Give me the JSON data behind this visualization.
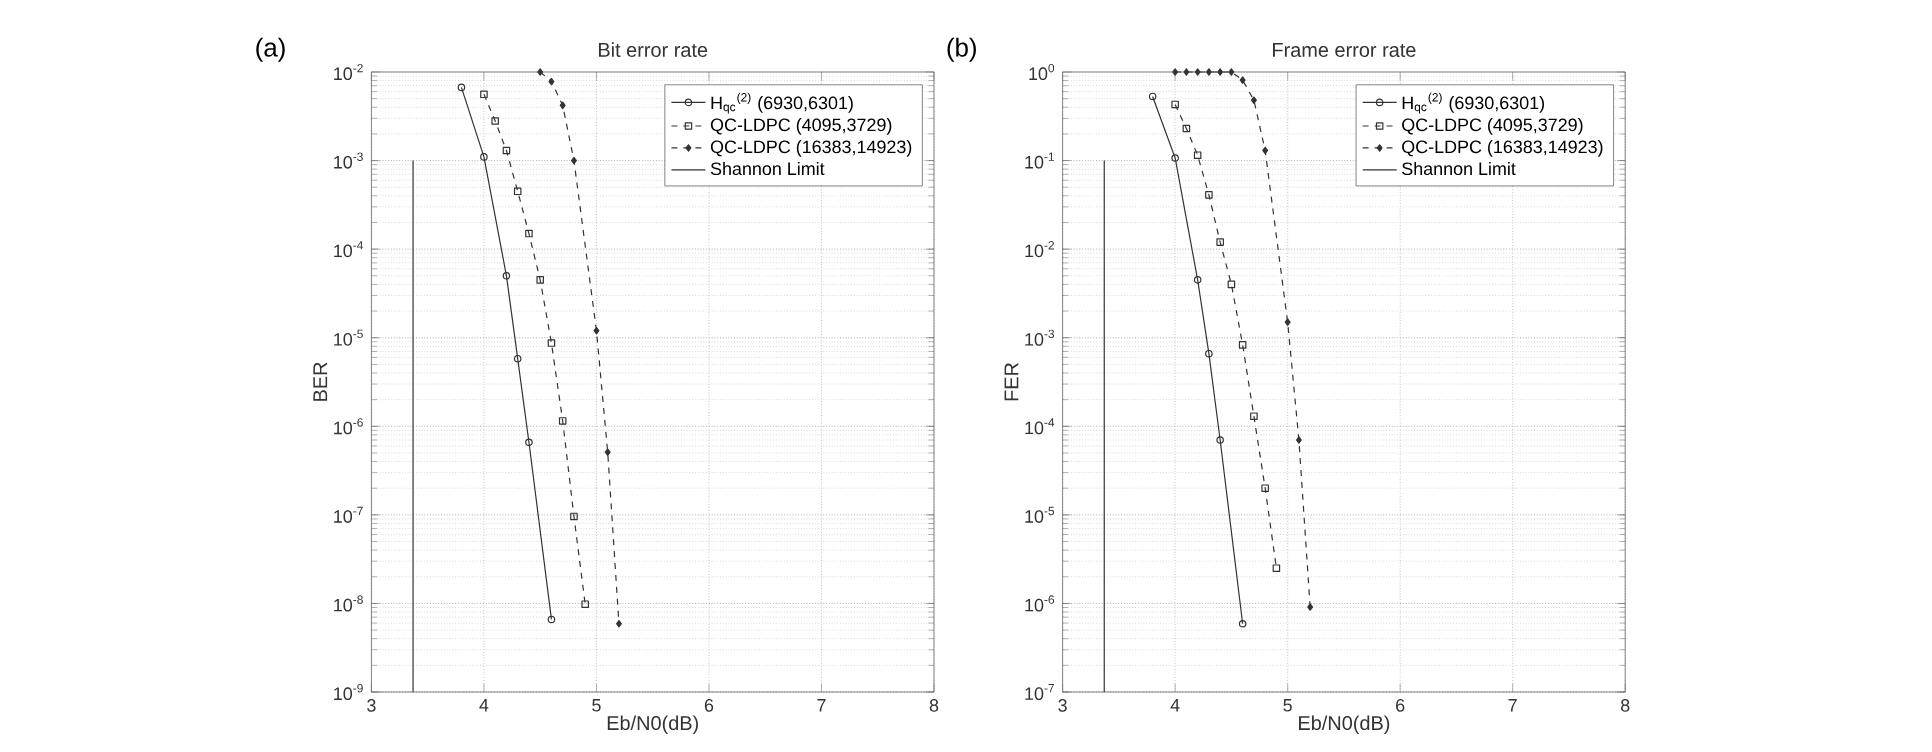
{
  "chart_data": [
    {
      "type": "line",
      "title": "Bit error rate",
      "xlabel": "Eb/N0(dB)",
      "ylabel": "BER",
      "annotations": [
        "(a)"
      ],
      "xlim": [
        3,
        8
      ],
      "xticks": [
        3,
        4,
        5,
        6,
        7,
        8
      ],
      "ylim": [
        1e-09,
        0.01
      ],
      "log": "y",
      "yticks": [
        {
          "value": 1e-09,
          "label": "10$^{-9}$"
        },
        {
          "value": 1e-08,
          "label": "10$^{-8}$"
        },
        {
          "value": 1e-07,
          "label": "10$^{-7}$"
        },
        {
          "value": 1e-06,
          "label": "10$^{-6}$"
        },
        {
          "value": 1e-05,
          "label": "10$^{-5}$"
        },
        {
          "value": 0.0001,
          "label": "10$^{-4}$"
        },
        {
          "value": 0.001,
          "label": "10$^{-3}$"
        },
        {
          "value": 0.01,
          "label": "10$^{-2}$"
        }
      ],
      "grid": true,
      "legend": "top right",
      "series": [
        {
          "name": "H$_{qc}$$^{(2)}$ (6930,6301)",
          "color": "#333333",
          "marker": "circle",
          "line_style": "solid",
          "x": [
            3.8,
            4.0,
            4.2,
            4.3,
            4.4,
            4.6
          ],
          "values": [
            0.0067,
            0.0011,
            5e-05,
            5.8e-06,
            6.6e-07,
            6.6e-09
          ]
        },
        {
          "name": "QC-LDPC (4095,3729)",
          "color": "#333333",
          "marker": "square",
          "line_style": "dashed",
          "x": [
            4.0,
            4.1,
            4.2,
            4.3,
            4.4,
            4.5,
            4.6,
            4.7,
            4.8,
            4.9
          ],
          "values": [
            0.0056,
            0.0028,
            0.0013,
            0.00045,
            0.00015,
            4.5e-05,
            8.7e-06,
            1.15e-06,
            9.6e-08,
            9.8e-09
          ]
        },
        {
          "name": "QC-LDPC (16383,14923)",
          "color": "#333333",
          "marker": "diamond",
          "line_style": "dashed",
          "x": [
            4.5,
            4.6,
            4.7,
            4.8,
            5.0,
            5.1,
            5.2
          ],
          "values": [
            0.01,
            0.0078,
            0.0042,
            0.001,
            1.2e-05,
            5.1e-07,
            5.9e-09
          ]
        },
        {
          "name": "Shannon Limit",
          "color": "#333333",
          "marker": "none",
          "line_style": "solid",
          "x": [
            3.37,
            3.37
          ],
          "values": [
            1e-09,
            0.001
          ]
        }
      ]
    },
    {
      "type": "line",
      "title": "Frame error rate",
      "xlabel": "Eb/N0(dB)",
      "ylabel": "FER",
      "annotations": [
        "(b)"
      ],
      "xlim": [
        3,
        8
      ],
      "xticks": [
        3,
        4,
        5,
        6,
        7,
        8
      ],
      "ylim": [
        1e-07,
        1
      ],
      "log": "y",
      "yticks": [
        {
          "value": 1e-07,
          "label": "10$^{-7}$"
        },
        {
          "value": 1e-06,
          "label": "10$^{-6}$"
        },
        {
          "value": 1e-05,
          "label": "10$^{-5}$"
        },
        {
          "value": 0.0001,
          "label": "10$^{-4}$"
        },
        {
          "value": 0.001,
          "label": "10$^{-3}$"
        },
        {
          "value": 0.01,
          "label": "10$^{-2}$"
        },
        {
          "value": 0.1,
          "label": "10$^{-1}$"
        },
        {
          "value": 1,
          "label": "10$^{0}$"
        }
      ],
      "grid": true,
      "legend": "top right",
      "series": [
        {
          "name": "H$_{qc}$$^{(2)}$ (6930,6301)",
          "color": "#333333",
          "marker": "circle",
          "line_style": "solid",
          "x": [
            3.8,
            4.0,
            4.2,
            4.3,
            4.4,
            4.6
          ],
          "values": [
            0.53,
            0.107,
            0.0045,
            0.00066,
            7e-05,
            5.9e-07
          ]
        },
        {
          "name": "QC-LDPC (4095,3729)",
          "color": "#333333",
          "marker": "square",
          "line_style": "dashed",
          "x": [
            4.0,
            4.1,
            4.2,
            4.3,
            4.4,
            4.5,
            4.6,
            4.7,
            4.8,
            4.9
          ],
          "values": [
            0.43,
            0.23,
            0.115,
            0.041,
            0.012,
            0.004,
            0.00083,
            0.00013,
            2e-05,
            2.5e-06
          ]
        },
        {
          "name": "QC-LDPC (16383,14923)",
          "color": "#333333",
          "marker": "diamond",
          "line_style": "dashed",
          "x": [
            4.0,
            4.1,
            4.2,
            4.3,
            4.4,
            4.5,
            4.6,
            4.7,
            4.8,
            5.0,
            5.1,
            5.2
          ],
          "values": [
            1,
            1,
            1,
            1,
            1,
            1,
            0.81,
            0.48,
            0.13,
            0.0015,
            7e-05,
            9.1e-07
          ]
        },
        {
          "name": "Shannon Limit",
          "color": "#333333",
          "marker": "none",
          "line_style": "solid",
          "x": [
            3.37,
            3.37
          ],
          "values": [
            1e-07,
            0.1
          ]
        }
      ]
    }
  ]
}
